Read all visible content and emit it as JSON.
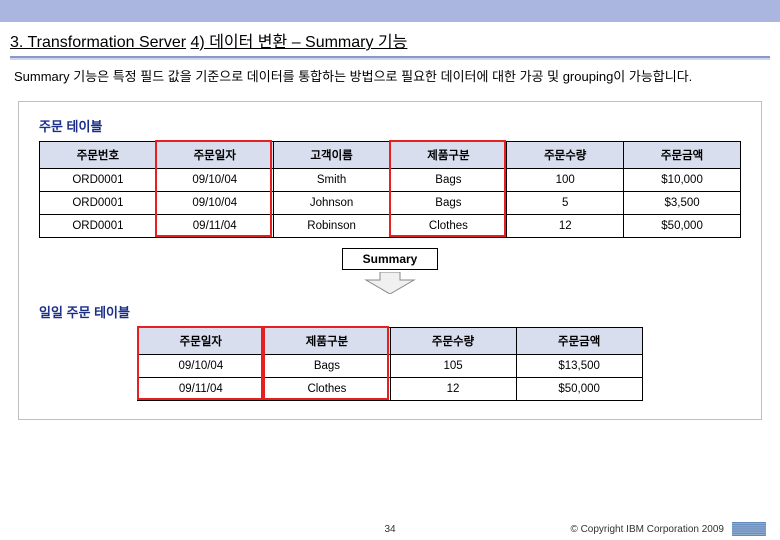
{
  "heading": {
    "section": "3. Transformation Server",
    "sub": "4) 데이터 변환 – Summary 기능"
  },
  "description": "Summary 기능은 특정 필드 값을 기준으로 데이터를 통합하는 방법으로 필요한 데이터에 대한 가공 및 grouping이 가능합니다.",
  "table1": {
    "title": "주문 테이블",
    "columns": [
      "주문번호",
      "주문일자",
      "고객이름",
      "제품구분",
      "주문수량",
      "주문금액"
    ],
    "rows": [
      [
        "ORD0001",
        "09/10/04",
        "Smith",
        "Bags",
        "100",
        "$10,000"
      ],
      [
        "ORD0001",
        "09/10/04",
        "Johnson",
        "Bags",
        "5",
        "$3,500"
      ],
      [
        "ORD0001",
        "09/11/04",
        "Robinson",
        "Clothes",
        "12",
        "$50,000"
      ]
    ],
    "highlight_cols": [
      1,
      3
    ],
    "border_color": "#000000",
    "header_bg": "#d8deee",
    "highlight_color": "#e62020",
    "font_size": 11.5
  },
  "arrow_label": "Summary",
  "table2": {
    "title": "일일 주문 테이블",
    "columns": [
      "주문일자",
      "제품구분",
      "주문수량",
      "주문금액"
    ],
    "rows": [
      [
        "09/10/04",
        "Bags",
        "105",
        "$13,500"
      ],
      [
        "09/11/04",
        "Clothes",
        "12",
        "$50,000"
      ]
    ],
    "highlight_cols": [
      0,
      1
    ],
    "border_color": "#000000",
    "header_bg": "#d8deee",
    "highlight_color": "#e62020",
    "font_size": 11.5
  },
  "footer": {
    "page": "34",
    "copyright": "© Copyright IBM Corporation 2009",
    "logo_text": "IBM"
  },
  "colors": {
    "top_band": "#aab6e0",
    "section_title": "#1b2f8a",
    "rule_top": "#8a97c8",
    "rule_bottom": "#cfd5ea"
  }
}
